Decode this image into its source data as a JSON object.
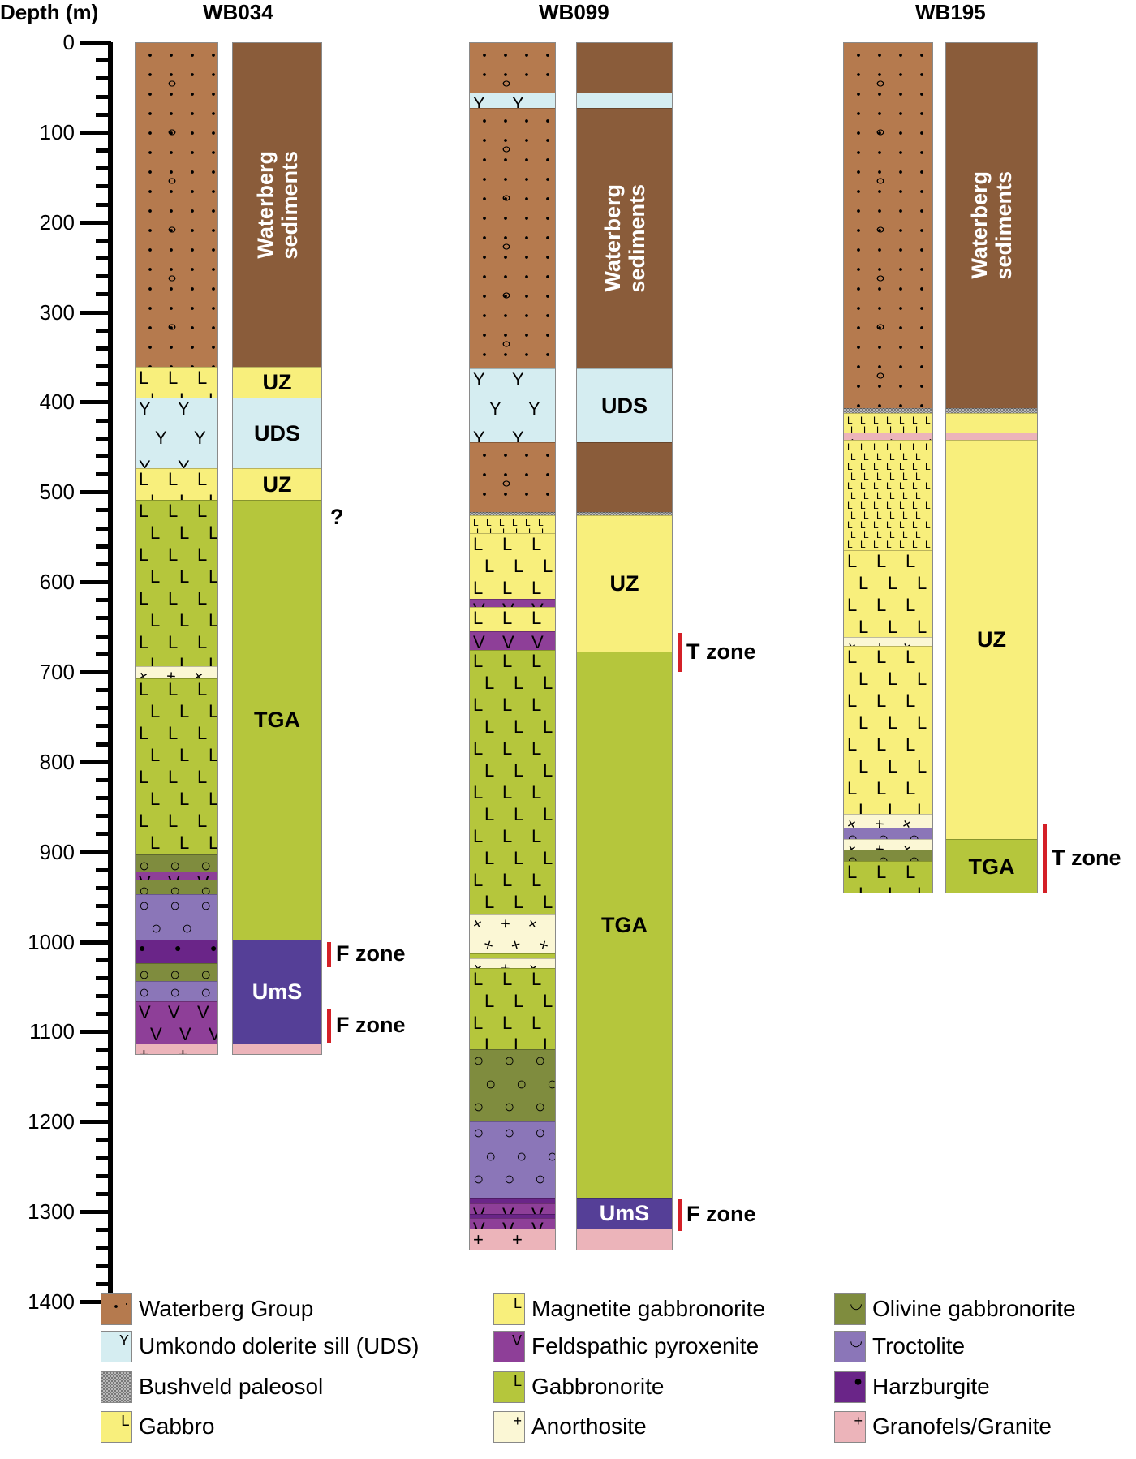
{
  "axis": {
    "title": "Depth (m)",
    "ticks": [
      "0",
      "100",
      "200",
      "300",
      "400",
      "500",
      "600",
      "700",
      "800",
      "900",
      "1000",
      "1100",
      "1200",
      "1300",
      "1400"
    ],
    "min": 0,
    "max": 1400,
    "minor_step": 20
  },
  "colors": {
    "waterberg_group": "#b57a4e",
    "waterberg_sediments_zone": "#8a5c3a",
    "uds": "#d5edf1",
    "gabbro": "#f8ef7c",
    "magnetite_gabbronorite": "#f8ef7c",
    "feldspathic_pyroxenite": "#8e3f98",
    "gabbronorite": "#b5c63c",
    "anorthosite": "#fbf7d5",
    "olivine_gabbronorite": "#7f8c3e",
    "troctolite": "#8b76b8",
    "harzburgite": "#6a2588",
    "granofels_granite": "#ecb4ba",
    "ums": "#553f97",
    "zone_marker": "#d42027"
  },
  "chart_data": {
    "type": "stratigraphic_log",
    "ylabel": "Depth (m)",
    "ylim": [
      0,
      1400
    ],
    "boreholes": [
      {
        "name": "WB034",
        "lithology": [
          {
            "top": 0,
            "bottom": 360,
            "unit": "Waterberg Group"
          },
          {
            "top": 360,
            "bottom": 394,
            "unit": "Magnetite gabbronorite"
          },
          {
            "top": 394,
            "bottom": 473,
            "unit": "Umkondo dolerite sill (UDS)"
          },
          {
            "top": 473,
            "bottom": 508,
            "unit": "Magnetite gabbronorite"
          },
          {
            "top": 508,
            "bottom": 693,
            "unit": "Gabbronorite"
          },
          {
            "top": 693,
            "bottom": 706,
            "unit": "Anorthosite"
          },
          {
            "top": 706,
            "bottom": 902,
            "unit": "Gabbronorite"
          },
          {
            "top": 902,
            "bottom": 921,
            "unit": "Olivine gabbronorite"
          },
          {
            "top": 921,
            "bottom": 930,
            "unit": "Feldspathic pyroxenite"
          },
          {
            "top": 930,
            "bottom": 946,
            "unit": "Olivine gabbronorite"
          },
          {
            "top": 946,
            "bottom": 997,
            "unit": "Troctolite"
          },
          {
            "top": 997,
            "bottom": 1023,
            "unit": "Harzburgite"
          },
          {
            "top": 1023,
            "bottom": 1043,
            "unit": "Olivine gabbronorite"
          },
          {
            "top": 1043,
            "bottom": 1065,
            "unit": "Troctolite"
          },
          {
            "top": 1065,
            "bottom": 1112,
            "unit": "Feldspathic pyroxenite"
          },
          {
            "top": 1112,
            "bottom": 1126,
            "unit": "Granofels/Granite"
          }
        ],
        "zones": [
          {
            "top": 0,
            "bottom": 360,
            "label": "Waterberg\nsediments",
            "type": "waterberg"
          },
          {
            "top": 360,
            "bottom": 394,
            "label": "UZ",
            "type": "uz"
          },
          {
            "top": 394,
            "bottom": 473,
            "label": "UDS",
            "type": "uds"
          },
          {
            "top": 473,
            "bottom": 508,
            "label": "UZ",
            "type": "uz"
          },
          {
            "top": 508,
            "bottom": 997,
            "label": "TGA",
            "type": "tga"
          },
          {
            "top": 997,
            "bottom": 1112,
            "label": "UmS",
            "type": "ums"
          },
          {
            "top": 1112,
            "bottom": 1126,
            "label": "",
            "type": "granite"
          }
        ],
        "markers": [
          {
            "top": 1000,
            "bottom": 1028,
            "label": "F zone"
          },
          {
            "top": 1075,
            "bottom": 1112,
            "label": "F zone"
          }
        ],
        "annotations": [
          {
            "depth": 512,
            "text": "?"
          }
        ]
      },
      {
        "name": "WB099",
        "lithology": [
          {
            "top": 0,
            "bottom": 55,
            "unit": "Waterberg Group"
          },
          {
            "top": 55,
            "bottom": 72,
            "unit": "Umkondo dolerite sill (UDS)"
          },
          {
            "top": 72,
            "bottom": 362,
            "unit": "Waterberg Group"
          },
          {
            "top": 362,
            "bottom": 444,
            "unit": "Umkondo dolerite sill (UDS)"
          },
          {
            "top": 444,
            "bottom": 521,
            "unit": "Waterberg Group"
          },
          {
            "top": 521,
            "bottom": 525,
            "unit": "Bushveld paleosol"
          },
          {
            "top": 525,
            "bottom": 545,
            "unit": "Gabbro"
          },
          {
            "top": 545,
            "bottom": 618,
            "unit": "Magnetite gabbronorite"
          },
          {
            "top": 618,
            "bottom": 627,
            "unit": "Feldspathic pyroxenite"
          },
          {
            "top": 627,
            "bottom": 654,
            "unit": "Magnetite gabbronorite"
          },
          {
            "top": 654,
            "bottom": 675,
            "unit": "Feldspathic pyroxenite"
          },
          {
            "top": 675,
            "bottom": 968,
            "unit": "Gabbronorite"
          },
          {
            "top": 968,
            "bottom": 1012,
            "unit": "Anorthosite"
          },
          {
            "top": 1012,
            "bottom": 1018,
            "unit": "Gabbronorite"
          },
          {
            "top": 1018,
            "bottom": 1028,
            "unit": "Anorthosite"
          },
          {
            "top": 1028,
            "bottom": 1119,
            "unit": "Gabbronorite"
          },
          {
            "top": 1119,
            "bottom": 1199,
            "unit": "Olivine gabbronorite"
          },
          {
            "top": 1199,
            "bottom": 1284,
            "unit": "Troctolite"
          },
          {
            "top": 1284,
            "bottom": 1290,
            "unit": "Harzburgite"
          },
          {
            "top": 1290,
            "bottom": 1302,
            "unit": "Feldspathic pyroxenite"
          },
          {
            "top": 1302,
            "bottom": 1306,
            "unit": "Harzburgite"
          },
          {
            "top": 1306,
            "bottom": 1318,
            "unit": "Feldspathic pyroxenite"
          },
          {
            "top": 1318,
            "bottom": 1343,
            "unit": "Granofels/Granite"
          }
        ],
        "zones": [
          {
            "top": 0,
            "bottom": 55,
            "label": "",
            "type": "waterberg"
          },
          {
            "top": 55,
            "bottom": 72,
            "label": "",
            "type": "uds"
          },
          {
            "top": 72,
            "bottom": 362,
            "label": "Waterberg\nsediments",
            "type": "waterberg"
          },
          {
            "top": 362,
            "bottom": 444,
            "label": "UDS",
            "type": "uds"
          },
          {
            "top": 444,
            "bottom": 521,
            "label": "",
            "type": "waterberg"
          },
          {
            "top": 521,
            "bottom": 525,
            "label": "",
            "type": "paleosol"
          },
          {
            "top": 525,
            "bottom": 677,
            "label": "UZ",
            "type": "uz"
          },
          {
            "top": 677,
            "bottom": 1284,
            "label": "TGA",
            "type": "tga"
          },
          {
            "top": 1284,
            "bottom": 1318,
            "label": "UmS",
            "type": "ums"
          },
          {
            "top": 1318,
            "bottom": 1343,
            "label": "",
            "type": "granite"
          }
        ],
        "markers": [
          {
            "top": 657,
            "bottom": 700,
            "label": "T zone"
          },
          {
            "top": 1286,
            "bottom": 1322,
            "label": "F zone"
          }
        ]
      },
      {
        "name": "WB195",
        "lithology": [
          {
            "top": 0,
            "bottom": 406,
            "unit": "Waterberg Group"
          },
          {
            "top": 406,
            "bottom": 411,
            "unit": "Bushveld paleosol"
          },
          {
            "top": 411,
            "bottom": 433,
            "unit": "Gabbro"
          },
          {
            "top": 433,
            "bottom": 441,
            "unit": "Granofels/Granite"
          },
          {
            "top": 441,
            "bottom": 564,
            "unit": "Gabbro"
          },
          {
            "top": 564,
            "bottom": 660,
            "unit": "Magnetite gabbronorite"
          },
          {
            "top": 660,
            "bottom": 670,
            "unit": "Anorthosite"
          },
          {
            "top": 670,
            "bottom": 857,
            "unit": "Magnetite gabbronorite"
          },
          {
            "top": 857,
            "bottom": 872,
            "unit": "Anorthosite"
          },
          {
            "top": 872,
            "bottom": 885,
            "unit": "Troctolite"
          },
          {
            "top": 885,
            "bottom": 897,
            "unit": "Anorthosite"
          },
          {
            "top": 897,
            "bottom": 909,
            "unit": "Olivine gabbronorite"
          },
          {
            "top": 909,
            "bottom": 946,
            "unit": "Gabbronorite"
          }
        ],
        "zones": [
          {
            "top": 0,
            "bottom": 406,
            "label": "Waterberg\nsediments",
            "type": "waterberg"
          },
          {
            "top": 406,
            "bottom": 411,
            "label": "",
            "type": "paleosol"
          },
          {
            "top": 411,
            "bottom": 433,
            "label": "",
            "type": "uz"
          },
          {
            "top": 433,
            "bottom": 441,
            "label": "",
            "type": "granite"
          },
          {
            "top": 441,
            "bottom": 885,
            "label": "UZ",
            "type": "uz"
          },
          {
            "top": 885,
            "bottom": 946,
            "label": "TGA",
            "type": "tga"
          }
        ],
        "markers": [
          {
            "top": 869,
            "bottom": 946,
            "label": "T zone"
          }
        ]
      }
    ]
  },
  "legend": {
    "items": [
      {
        "label": "Waterberg Group",
        "pattern": "waterberg",
        "glyph": "dots-ovals-icon"
      },
      {
        "label": "Umkondo dolerite sill (UDS)",
        "pattern": "uds",
        "glyph": "y-icon"
      },
      {
        "label": "Bushveld paleosol",
        "pattern": "paleosol",
        "glyph": "checker-icon"
      },
      {
        "label": "Gabbro",
        "pattern": "gabbro",
        "glyph": "small-l-icon"
      },
      {
        "label": "Magnetite gabbronorite",
        "pattern": "maggbn",
        "glyph": "l-icon"
      },
      {
        "label": "Feldspathic pyroxenite",
        "pattern": "feldpyx",
        "glyph": "v-icon"
      },
      {
        "label": "Gabbronorite",
        "pattern": "gbn",
        "glyph": "l-icon"
      },
      {
        "label": "Anorthosite",
        "pattern": "anorth",
        "glyph": "cross-dash-icon"
      },
      {
        "label": "Olivine gabbronorite",
        "pattern": "olgbn",
        "glyph": "circle-icon"
      },
      {
        "label": "Troctolite",
        "pattern": "troct",
        "glyph": "circle-icon"
      },
      {
        "label": "Harzburgite",
        "pattern": "harz",
        "glyph": "dot-icon"
      },
      {
        "label": "Granofels/Granite",
        "pattern": "granite",
        "glyph": "plus-icon"
      }
    ]
  }
}
